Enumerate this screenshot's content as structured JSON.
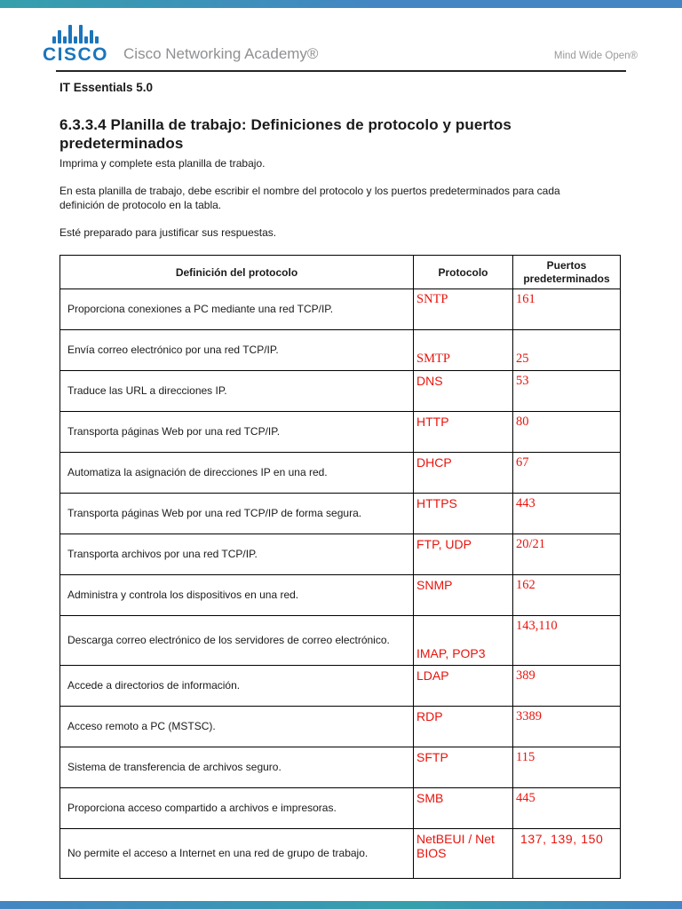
{
  "header": {
    "brand": "CISCO",
    "brand_sub": "Cisco Networking Academy®",
    "tagline": "Mind Wide Open®"
  },
  "document": {
    "course": "IT Essentials 5.0",
    "title": "6.3.3.4 Planilla de trabajo: Definiciones de protocolo y puertos predeterminados",
    "instructions": [
      "Imprima y complete esta planilla de trabajo.",
      "En esta planilla de trabajo, debe escribir el nombre del protocolo y los puertos predeterminados para cada definición de protocolo en la tabla.",
      "Esté preparado para justificar sus respuestas."
    ]
  },
  "table": {
    "headers": [
      "Definición del protocolo",
      "Protocolo",
      "Puertos predeterminados"
    ],
    "rows": [
      {
        "definition": "Proporciona conexiones a PC mediante una red TCP/IP.",
        "protocol": "SNTP",
        "ports": "161"
      },
      {
        "definition": "Envía correo electrónico por una red TCP/IP.",
        "protocol": "SMTP",
        "ports": "25"
      },
      {
        "definition": "Traduce las URL a direcciones IP.",
        "protocol": "DNS",
        "ports": "53"
      },
      {
        "definition": "Transporta páginas Web por una red TCP/IP.",
        "protocol": "HTTP",
        "ports": "80"
      },
      {
        "definition": "Automatiza la asignación de direcciones IP en una red.",
        "protocol": "DHCP",
        "ports": "67"
      },
      {
        "definition": "Transporta páginas Web por una red TCP/IP de forma segura.",
        "protocol": "HTTPS",
        "ports": "443"
      },
      {
        "definition": "Transporta archivos por una red TCP/IP.",
        "protocol": "FTP, UDP",
        "ports": "20/21"
      },
      {
        "definition": "Administra y controla los dispositivos en una red.",
        "protocol": "SNMP",
        "ports": "162"
      },
      {
        "definition": "Descarga correo electrónico de los servidores de correo electrónico.",
        "protocol": "IMAP, POP3",
        "ports": "143,110"
      },
      {
        "definition": "Accede a directorios de información.",
        "protocol": "LDAP",
        "ports": "389"
      },
      {
        "definition": "Acceso remoto a PC (MSTSC).",
        "protocol": "RDP",
        "ports": "3389"
      },
      {
        "definition": "Sistema de transferencia de archivos seguro.",
        "protocol": "SFTP",
        "ports": "115"
      },
      {
        "definition": "Proporciona acceso compartido a archivos e impresoras.",
        "protocol": "SMB",
        "ports": "445"
      },
      {
        "definition": "No permite el acceso a Internet en una red de grupo de trabajo.",
        "protocol": "NetBEUI / Net BIOS",
        "ports": "137, 139, 150"
      }
    ]
  },
  "colors": {
    "answer_red": "#e8130c",
    "cisco_blue": "#1b75bc",
    "accent_teal": "#35a0ac",
    "accent_blue": "#4386c3"
  }
}
